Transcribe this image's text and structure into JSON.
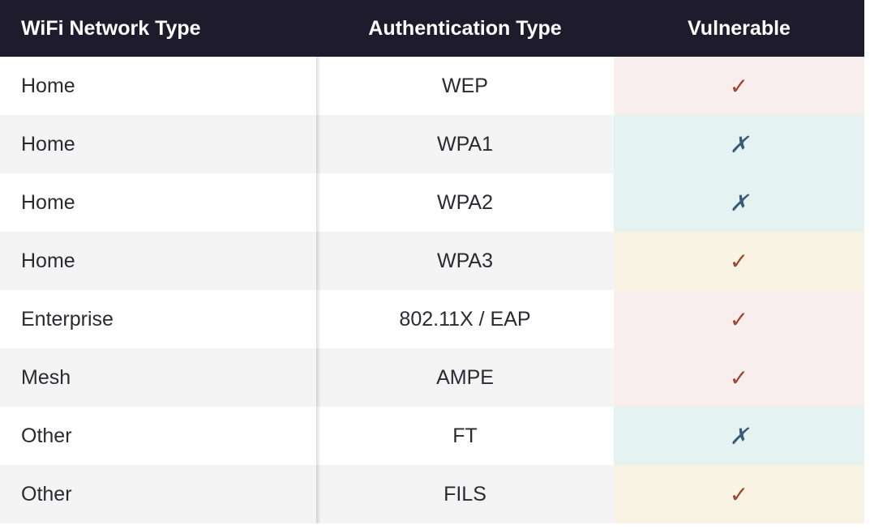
{
  "table": {
    "columns": [
      "WiFi Network Type",
      "Authentication Type",
      "Vulnerable"
    ],
    "rows": [
      [
        "Home",
        "WEP",
        "✓"
      ],
      [
        "Home",
        "WPA1",
        "✗"
      ],
      [
        "Home",
        "WPA2",
        "✗"
      ],
      [
        "Home",
        "WPA3",
        "✓"
      ],
      [
        "Enterprise",
        "802.11X / EAP",
        "✓"
      ],
      [
        "Mesh",
        "AMPE",
        "✓"
      ],
      [
        "Other",
        "FT",
        "✗"
      ],
      [
        "Other",
        "FILS",
        "✓"
      ]
    ]
  }
}
